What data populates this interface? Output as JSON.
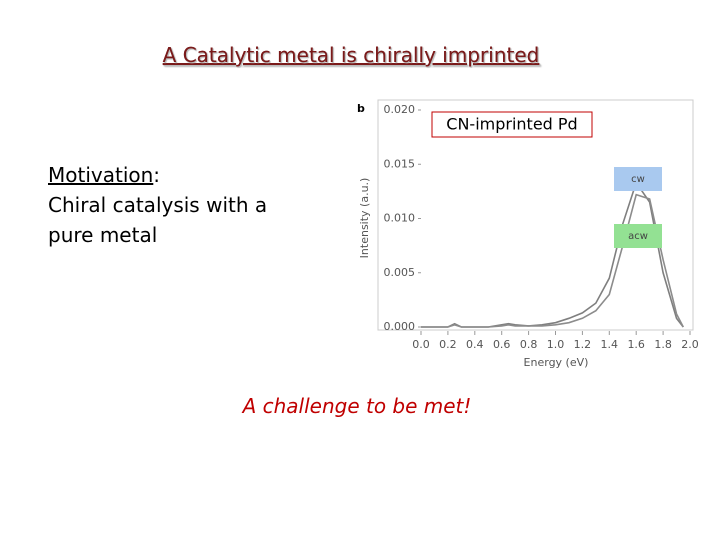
{
  "slide": {
    "title": "A Catalytic metal is chirally imprinted",
    "motivation": {
      "label": "Motivation",
      "separator": ":",
      "lines": [
        "Chiral catalysis with a",
        "pure metal"
      ]
    },
    "conclusion": "A challenge to be met!"
  },
  "chart_data": {
    "type": "line",
    "panel_label": "b",
    "annotation": "CN-imprinted Pd",
    "x_label": "Energy (eV)",
    "y_label": "Intensity (a.u.)",
    "x": [
      0,
      0.1,
      0.2,
      0.25,
      0.3,
      0.4,
      0.5,
      0.6,
      0.65,
      0.7,
      0.8,
      0.9,
      1.0,
      1.1,
      1.2,
      1.3,
      1.4,
      1.5,
      1.6,
      1.7,
      1.8,
      1.9,
      1.95
    ],
    "series": [
      {
        "name": "cw",
        "color": "#7f7f7f",
        "legend_color": "#a9c9ef",
        "values": [
          0,
          0,
          0,
          0.0003,
          0,
          0,
          0,
          0.0002,
          0.0003,
          0.0002,
          0.0001,
          0.0002,
          0.0004,
          0.0008,
          0.0013,
          0.0022,
          0.0045,
          0.0095,
          0.0133,
          0.0115,
          0.005,
          0.0008,
          0
        ]
      },
      {
        "name": "acw",
        "color": "#8c8c8c",
        "legend_color": "#93e193",
        "values": [
          0,
          0,
          0,
          0.0002,
          0,
          0,
          0,
          0.0001,
          0.0002,
          0.0001,
          0.0001,
          0.0001,
          0.0002,
          0.0004,
          0.0008,
          0.0015,
          0.003,
          0.0075,
          0.0122,
          0.0118,
          0.0062,
          0.0012,
          0
        ]
      }
    ],
    "xlim": [
      0,
      2.0
    ],
    "xticks": [
      {
        "value": 0,
        "label": "0.0"
      },
      0.2,
      0.4,
      0.6,
      0.8,
      {
        "value": 1,
        "label": "1.0"
      },
      1.2,
      1.4,
      1.6,
      1.8,
      {
        "value": 2,
        "label": "2.0"
      }
    ],
    "ylim": [
      0,
      0.02
    ],
    "yticks": [
      {
        "value": 0,
        "label": "0.000"
      },
      0.005,
      {
        "value": 0.01,
        "label": "0.010"
      },
      0.015,
      {
        "value": 0.02,
        "label": "0.020"
      }
    ],
    "grid": false
  }
}
